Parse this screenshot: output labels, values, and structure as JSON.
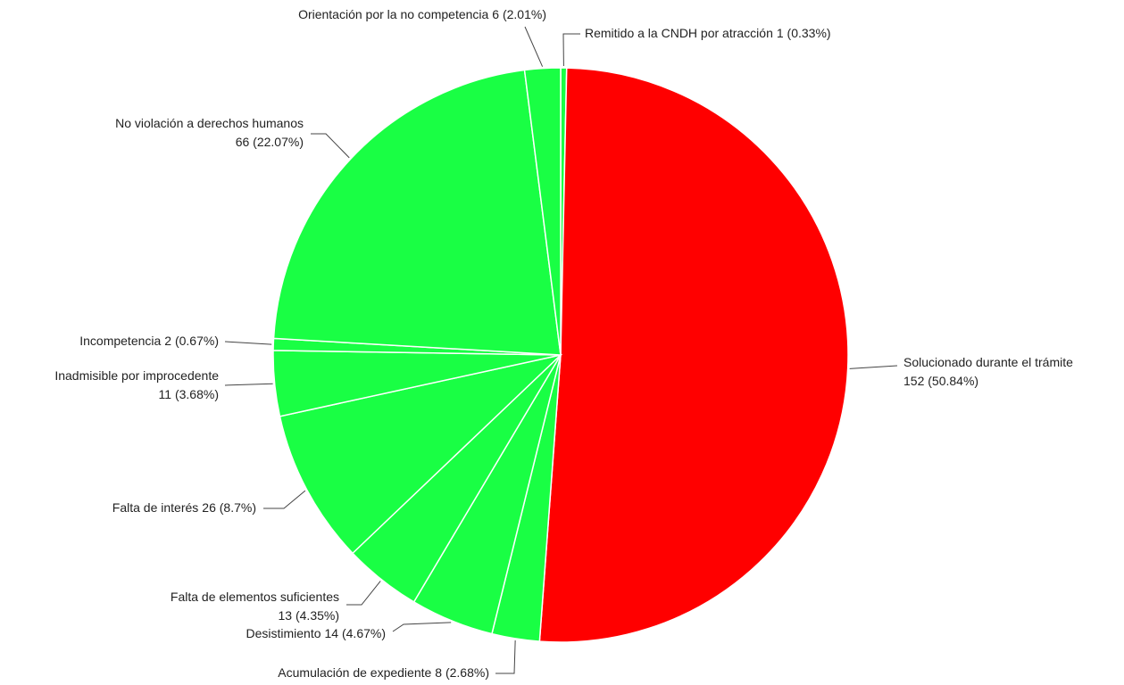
{
  "chart_data": {
    "type": "pie",
    "categories": [
      "Remitido a la CNDH por atracción",
      "Solucionado durante el trámite",
      "Acumulación de expediente",
      "Desistimiento",
      "Falta de elementos suficientes",
      "Falta de interés",
      "Inadmisible por improcedente",
      "Incompetencia",
      "No violación a derechos humanos",
      "Orientación por la no competencia"
    ],
    "values": [
      1,
      152,
      8,
      14,
      13,
      26,
      11,
      2,
      66,
      6
    ],
    "value_labels": [
      "1 (0.33%)",
      "152 (50.84%)",
      "8 (2.68%)",
      "14 (4.67%)",
      "13 (4.35%)",
      "26 (8.7%)",
      "11 (3.68%)",
      "2 (0.67%)",
      "66 (22.07%)",
      "6 (2.01%)"
    ],
    "colors": [
      "#19ff44",
      "#ff0000",
      "#19ff44",
      "#19ff44",
      "#19ff44",
      "#19ff44",
      "#19ff44",
      "#19ff44",
      "#19ff44",
      "#19ff44"
    ]
  }
}
